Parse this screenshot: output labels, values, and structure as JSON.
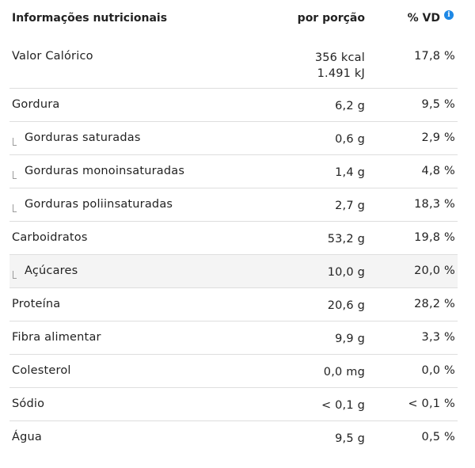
{
  "header": {
    "name": "Informações nutricionais",
    "portion": "por porção",
    "vd": "% VD",
    "info_icon": "info-icon"
  },
  "rows": [
    {
      "name": "Valor Calórico",
      "portion_line1": "356 kcal",
      "portion_line2": "1.491 kJ",
      "vd": "17,8 %"
    },
    {
      "name": "Gordura",
      "portion": "6,2 g",
      "vd": "9,5 %"
    },
    {
      "name": "Gorduras saturadas",
      "portion": "0,6 g",
      "vd": "2,9 %"
    },
    {
      "name": "Gorduras monoinsaturadas",
      "portion": "1,4 g",
      "vd": "4,8 %"
    },
    {
      "name": "Gorduras poliinsaturadas",
      "portion": "2,7 g",
      "vd": "18,3 %"
    },
    {
      "name": "Carboidratos",
      "portion": "53,2 g",
      "vd": "19,8 %"
    },
    {
      "name": "Açúcares",
      "portion": "10,0 g",
      "vd": "20,0 %"
    },
    {
      "name": "Proteína",
      "portion": "20,6 g",
      "vd": "28,2 %"
    },
    {
      "name": "Fibra alimentar",
      "portion": "9,9 g",
      "vd": "3,3 %"
    },
    {
      "name": "Colesterol",
      "portion": "0,0 mg",
      "vd": "0,0 %"
    },
    {
      "name": "Sódio",
      "portion": "< 0,1 g",
      "vd": "< 0,1 %"
    },
    {
      "name": "Água",
      "portion": "9,5 g",
      "vd": "0,5 %"
    }
  ],
  "colors": {
    "info_icon": "#1e88e5",
    "highlight_row": "#f4f4f4",
    "divider": "#dedede"
  }
}
